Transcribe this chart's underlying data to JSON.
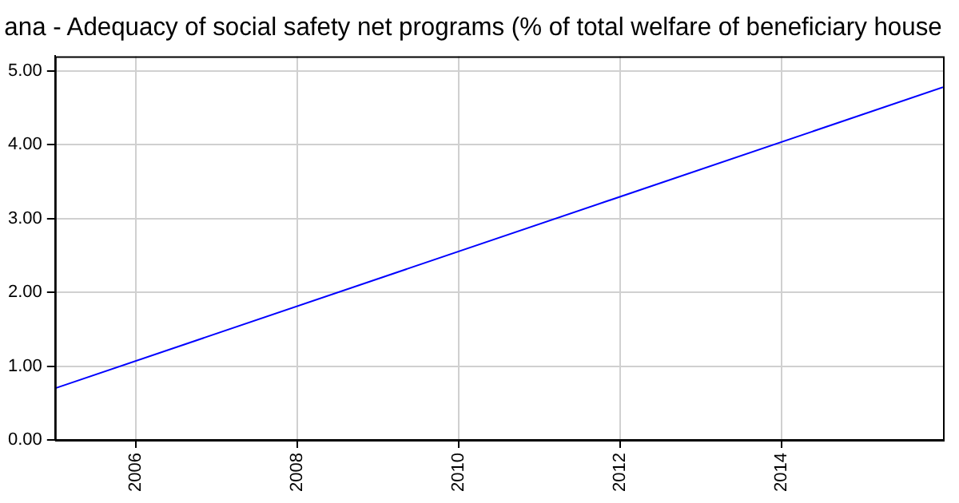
{
  "chart_data": {
    "type": "line",
    "title": "ana - Adequacy of social safety net programs (% of total welfare of beneficiary house",
    "x": [
      2005,
      2016
    ],
    "series": [
      {
        "color": "#0000ff",
        "values": [
          0.7,
          4.78
        ]
      }
    ],
    "xlim": [
      2005,
      2016
    ],
    "xticks": [
      2006,
      2008,
      2010,
      2012,
      2014
    ],
    "ylim": [
      0,
      5.2
    ],
    "yticks": [
      {
        "value": 0,
        "label": "0.00"
      },
      {
        "value": 1,
        "label": "1.00"
      },
      {
        "value": 2,
        "label": "2.00"
      },
      {
        "value": 3,
        "label": "3.00"
      },
      {
        "value": 4,
        "label": "4.00"
      },
      {
        "value": 5,
        "label": "5.00"
      }
    ],
    "grid": true,
    "legend": false,
    "marker": "none",
    "line_style": "solid"
  }
}
